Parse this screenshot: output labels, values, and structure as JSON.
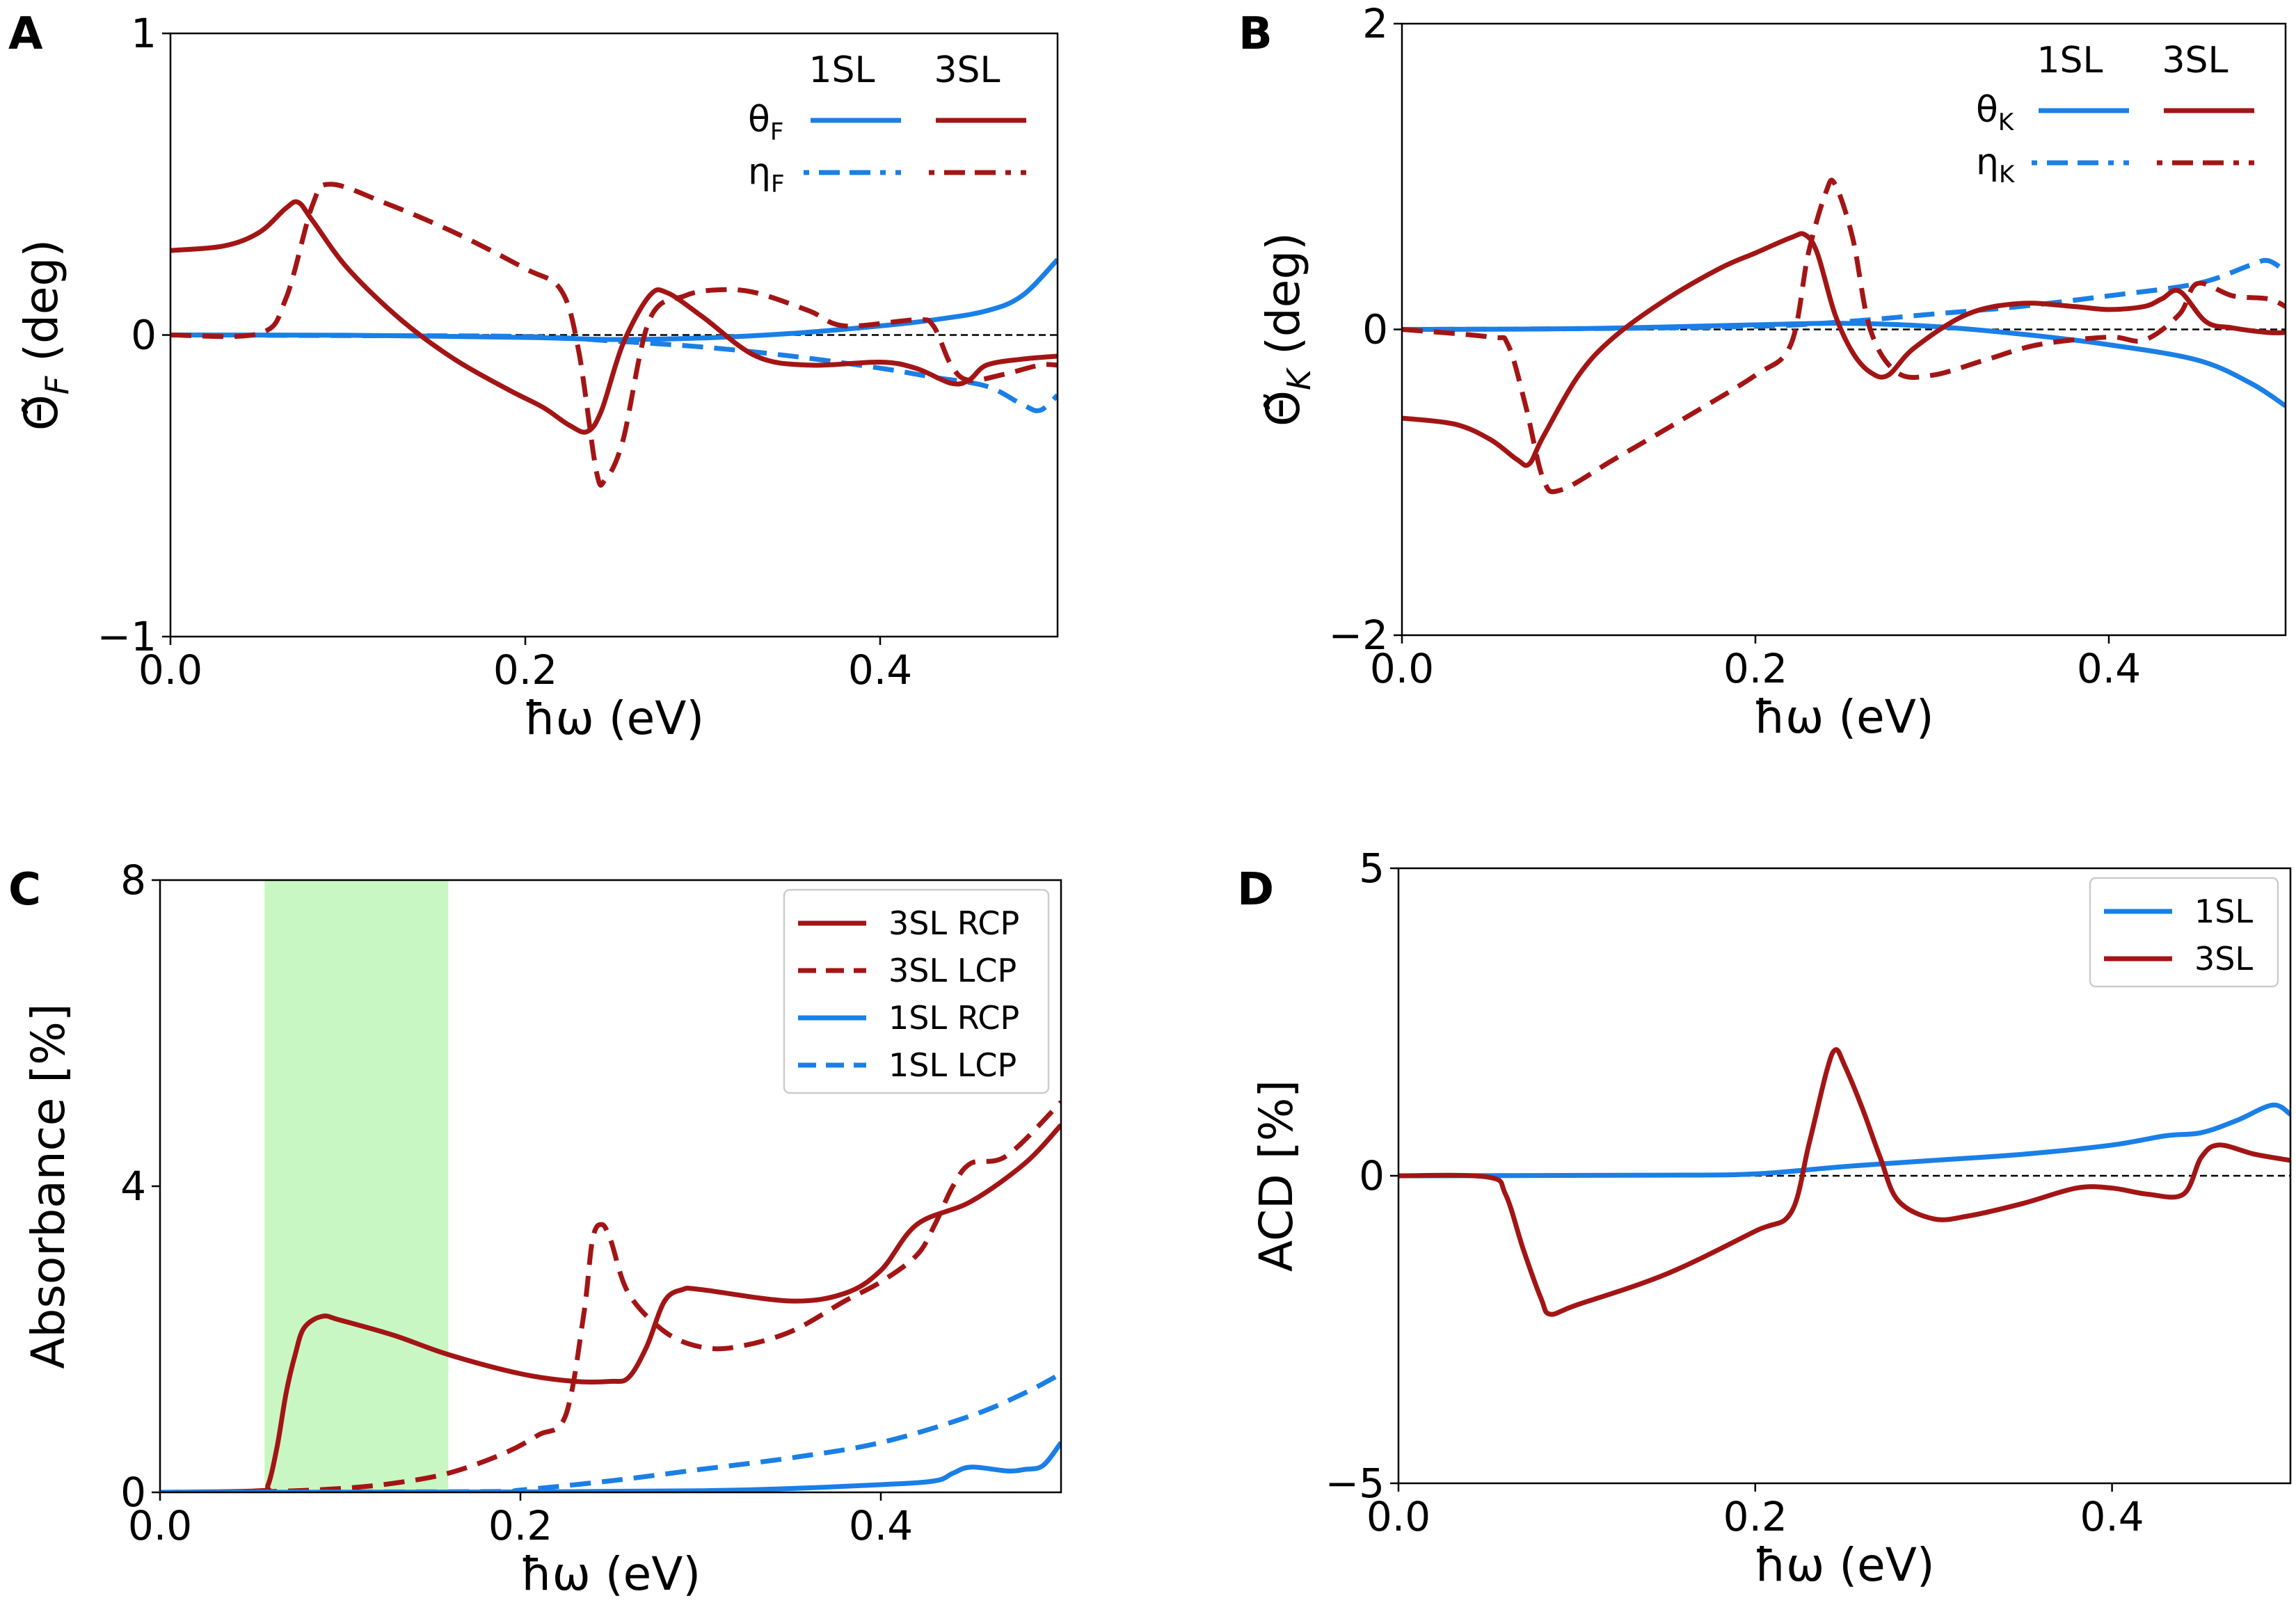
{
  "colors": {
    "blue": "#1a7fe6",
    "red": "#a31515",
    "green": "#c8f7c3",
    "zero": "#000000",
    "legend_frame": "#cccccc"
  },
  "chart_data": [
    {
      "id": "A",
      "type": "line",
      "panel_letter": "A",
      "xlabel": "ħω (eV)",
      "ylabel_main": "Θ̃",
      "ylabel_sub": "F",
      "ylabel_unit": " (deg)",
      "xlim": [
        0,
        0.5
      ],
      "ylim": [
        -1,
        1
      ],
      "xticks": [
        0.0,
        0.2,
        0.4
      ],
      "xtick_labels": [
        "0.0",
        "0.2",
        "0.4"
      ],
      "yticks": [
        -1,
        0,
        1
      ],
      "ytick_labels": [
        "−1",
        "0",
        "1"
      ],
      "zero_line": true,
      "legend": {
        "style": "grid",
        "position": "top-right",
        "col_headers": [
          "1SL",
          "3SL"
        ],
        "rows": [
          {
            "label": "θ",
            "sub": "F",
            "dash": "solid"
          },
          {
            "label": "η",
            "sub": "F",
            "dash": "dashed"
          }
        ]
      },
      "series": [
        {
          "name": "1SL θF",
          "color": "blue",
          "dash": "solid",
          "x": [
            0,
            0.1,
            0.2,
            0.25,
            0.3,
            0.35,
            0.4,
            0.43,
            0.46,
            0.48,
            0.5
          ],
          "y": [
            0,
            -0.001,
            -0.008,
            -0.015,
            -0.01,
            0.005,
            0.03,
            0.05,
            0.08,
            0.13,
            0.25
          ]
        },
        {
          "name": "1SL ηF",
          "color": "blue",
          "dash": "dashed",
          "x": [
            0,
            0.1,
            0.2,
            0.25,
            0.3,
            0.35,
            0.4,
            0.43,
            0.46,
            0.48,
            0.49,
            0.5
          ],
          "y": [
            0,
            -0.002,
            -0.005,
            -0.02,
            -0.04,
            -0.07,
            -0.11,
            -0.14,
            -0.17,
            -0.23,
            -0.25,
            -0.2
          ]
        },
        {
          "name": "3SL θF",
          "color": "red",
          "dash": "solid",
          "x": [
            0,
            0.03,
            0.05,
            0.065,
            0.072,
            0.08,
            0.1,
            0.13,
            0.16,
            0.19,
            0.21,
            0.225,
            0.235,
            0.243,
            0.255,
            0.27,
            0.28,
            0.3,
            0.33,
            0.36,
            0.4,
            0.42,
            0.44,
            0.45,
            0.46,
            0.48,
            0.5
          ],
          "y": [
            0.28,
            0.295,
            0.34,
            0.42,
            0.44,
            0.38,
            0.22,
            0.05,
            -0.08,
            -0.18,
            -0.24,
            -0.3,
            -0.32,
            -0.25,
            -0.03,
            0.13,
            0.14,
            0.06,
            -0.07,
            -0.1,
            -0.09,
            -0.11,
            -0.16,
            -0.15,
            -0.1,
            -0.08,
            -0.07
          ]
        },
        {
          "name": "3SL ηF",
          "color": "red",
          "dash": "dashed",
          "x": [
            0,
            0.05,
            0.065,
            0.08,
            0.09,
            0.12,
            0.16,
            0.2,
            0.22,
            0.23,
            0.24,
            0.245,
            0.255,
            0.27,
            0.29,
            0.31,
            0.33,
            0.36,
            0.38,
            0.42,
            0.43,
            0.44,
            0.45,
            0.47,
            0.49,
            0.5
          ],
          "y": [
            0,
            0.005,
            0.12,
            0.43,
            0.5,
            0.44,
            0.34,
            0.22,
            0.15,
            -0.05,
            -0.45,
            -0.48,
            -0.35,
            0.05,
            0.13,
            0.15,
            0.14,
            0.08,
            0.03,
            0.05,
            0.03,
            -0.1,
            -0.15,
            -0.13,
            -0.1,
            -0.1
          ]
        }
      ]
    },
    {
      "id": "B",
      "type": "line",
      "panel_letter": "B",
      "xlabel": "ħω (eV)",
      "ylabel_main": "Θ̃",
      "ylabel_sub": "K",
      "ylabel_unit": " (deg)",
      "xlim": [
        0,
        0.5
      ],
      "ylim": [
        -2,
        2
      ],
      "xticks": [
        0.0,
        0.2,
        0.4
      ],
      "xtick_labels": [
        "0.0",
        "0.2",
        "0.4"
      ],
      "yticks": [
        -2,
        0,
        2
      ],
      "ytick_labels": [
        "−2",
        "0",
        "2"
      ],
      "zero_line": true,
      "legend": {
        "style": "grid",
        "position": "top-right",
        "col_headers": [
          "1SL",
          "3SL"
        ],
        "rows": [
          {
            "label": "θ",
            "sub": "K",
            "dash": "solid"
          },
          {
            "label": "η",
            "sub": "K",
            "dash": "dashed"
          }
        ]
      },
      "series": [
        {
          "name": "1SL θK",
          "color": "blue",
          "dash": "solid",
          "x": [
            0,
            0.1,
            0.2,
            0.25,
            0.3,
            0.35,
            0.4,
            0.45,
            0.48,
            0.5
          ],
          "y": [
            0,
            0.005,
            0.03,
            0.04,
            0.02,
            -0.03,
            -0.1,
            -0.2,
            -0.35,
            -0.5
          ]
        },
        {
          "name": "1SL ηK",
          "color": "blue",
          "dash": "dashed",
          "x": [
            0,
            0.1,
            0.2,
            0.25,
            0.3,
            0.35,
            0.4,
            0.45,
            0.48,
            0.49,
            0.5
          ],
          "y": [
            0,
            0.005,
            0.02,
            0.05,
            0.1,
            0.15,
            0.22,
            0.3,
            0.42,
            0.45,
            0.38
          ]
        },
        {
          "name": "3SL θK",
          "color": "red",
          "dash": "solid",
          "x": [
            0,
            0.03,
            0.05,
            0.065,
            0.072,
            0.08,
            0.1,
            0.12,
            0.15,
            0.18,
            0.2,
            0.22,
            0.228,
            0.235,
            0.245,
            0.255,
            0.265,
            0.275,
            0.29,
            0.32,
            0.35,
            0.38,
            0.4,
            0.42,
            0.43,
            0.44,
            0.455,
            0.47,
            0.49,
            0.5
          ],
          "y": [
            -0.58,
            -0.62,
            -0.72,
            -0.85,
            -0.88,
            -0.7,
            -0.3,
            -0.05,
            0.2,
            0.4,
            0.5,
            0.6,
            0.62,
            0.5,
            0.1,
            -0.15,
            -0.28,
            -0.3,
            -0.12,
            0.1,
            0.17,
            0.15,
            0.13,
            0.15,
            0.2,
            0.25,
            0.05,
            0.01,
            -0.02,
            -0.02
          ]
        },
        {
          "name": "3SL ηK",
          "color": "red",
          "dash": "dashed",
          "x": [
            0,
            0.05,
            0.06,
            0.07,
            0.08,
            0.09,
            0.12,
            0.16,
            0.2,
            0.22,
            0.23,
            0.24,
            0.245,
            0.255,
            0.265,
            0.28,
            0.3,
            0.33,
            0.36,
            0.4,
            0.42,
            0.44,
            0.45,
            0.47,
            0.49,
            0.5
          ],
          "y": [
            0,
            -0.05,
            -0.1,
            -0.5,
            -0.98,
            -1.05,
            -0.85,
            -0.58,
            -0.3,
            -0.1,
            0.5,
            0.9,
            0.95,
            0.6,
            0.0,
            -0.28,
            -0.3,
            -0.2,
            -0.1,
            -0.05,
            -0.07,
            0.1,
            0.3,
            0.22,
            0.2,
            0.15
          ]
        }
      ]
    },
    {
      "id": "C",
      "type": "line",
      "panel_letter": "C",
      "xlabel": "ħω (eV)",
      "ylabel": "Absorbance [%]",
      "xlim": [
        0,
        0.5
      ],
      "ylim": [
        0,
        8
      ],
      "xticks": [
        0.0,
        0.2,
        0.4
      ],
      "xtick_labels": [
        "0.0",
        "0.2",
        "0.4"
      ],
      "yticks": [
        0,
        4,
        8
      ],
      "ytick_labels": [
        "0",
        "4",
        "8"
      ],
      "zero_line": false,
      "shaded_band": {
        "x_from": 0.058,
        "x_to": 0.16
      },
      "legend": {
        "style": "box",
        "position": "top-right",
        "entries": [
          {
            "label": "3SL RCP",
            "color": "red",
            "dash": "solid"
          },
          {
            "label": "3SL LCP",
            "color": "red",
            "dash": "dashed"
          },
          {
            "label": "1SL RCP",
            "color": "blue",
            "dash": "solid"
          },
          {
            "label": "1SL LCP",
            "color": "blue",
            "dash": "dashed"
          }
        ]
      },
      "series": [
        {
          "name": "3SL RCP",
          "color": "red",
          "dash": "solid",
          "x": [
            0,
            0.055,
            0.06,
            0.065,
            0.07,
            0.075,
            0.08,
            0.09,
            0.1,
            0.13,
            0.16,
            0.2,
            0.23,
            0.25,
            0.26,
            0.27,
            0.28,
            0.29,
            0.3,
            0.35,
            0.38,
            0.4,
            0.42,
            0.45,
            0.48,
            0.5
          ],
          "y": [
            0,
            0.02,
            0.1,
            0.6,
            1.3,
            1.8,
            2.15,
            2.3,
            2.25,
            2.05,
            1.8,
            1.55,
            1.45,
            1.45,
            1.5,
            1.9,
            2.5,
            2.65,
            2.65,
            2.5,
            2.6,
            2.9,
            3.5,
            3.8,
            4.3,
            4.8
          ]
        },
        {
          "name": "3SL LCP",
          "color": "red",
          "dash": "dashed",
          "x": [
            0,
            0.06,
            0.1,
            0.13,
            0.16,
            0.19,
            0.21,
            0.225,
            0.235,
            0.24,
            0.245,
            0.25,
            0.26,
            0.28,
            0.3,
            0.32,
            0.35,
            0.38,
            0.4,
            0.42,
            0.43,
            0.44,
            0.45,
            0.47,
            0.5
          ],
          "y": [
            0,
            0.01,
            0.05,
            0.12,
            0.25,
            0.5,
            0.75,
            1.0,
            2.3,
            3.3,
            3.5,
            3.3,
            2.6,
            2.1,
            1.9,
            1.9,
            2.1,
            2.5,
            2.75,
            3.1,
            3.5,
            4.0,
            4.3,
            4.4,
            5.1
          ]
        },
        {
          "name": "1SL RCP",
          "color": "blue",
          "dash": "solid",
          "x": [
            0,
            0.2,
            0.3,
            0.35,
            0.4,
            0.43,
            0.44,
            0.45,
            0.47,
            0.48,
            0.49,
            0.5
          ],
          "y": [
            0,
            0.005,
            0.02,
            0.05,
            0.1,
            0.15,
            0.25,
            0.33,
            0.28,
            0.3,
            0.35,
            0.65
          ]
        },
        {
          "name": "1SL LCP",
          "color": "blue",
          "dash": "dashed",
          "x": [
            0,
            0.18,
            0.2,
            0.25,
            0.3,
            0.35,
            0.4,
            0.45,
            0.48,
            0.5
          ],
          "y": [
            0,
            0.01,
            0.03,
            0.15,
            0.3,
            0.45,
            0.65,
            1.0,
            1.3,
            1.55
          ]
        }
      ]
    },
    {
      "id": "D",
      "type": "line",
      "panel_letter": "D",
      "xlabel": "ħω (eV)",
      "ylabel": "ACD [%]",
      "xlim": [
        0,
        0.5
      ],
      "ylim": [
        -5,
        5
      ],
      "xticks": [
        0.0,
        0.2,
        0.4
      ],
      "xtick_labels": [
        "0.0",
        "0.2",
        "0.4"
      ],
      "yticks": [
        -5,
        0,
        5
      ],
      "ytick_labels": [
        "−5",
        "0",
        "5"
      ],
      "zero_line": true,
      "legend": {
        "style": "box",
        "position": "top-right",
        "entries": [
          {
            "label": "1SL",
            "color": "blue",
            "dash": "solid"
          },
          {
            "label": "3SL",
            "color": "red",
            "dash": "solid"
          }
        ]
      },
      "series": [
        {
          "name": "1SL",
          "color": "blue",
          "dash": "solid",
          "x": [
            0,
            0.15,
            0.2,
            0.25,
            0.3,
            0.35,
            0.4,
            0.43,
            0.45,
            0.47,
            0.49,
            0.5
          ],
          "y": [
            0,
            0.01,
            0.03,
            0.15,
            0.25,
            0.35,
            0.5,
            0.65,
            0.7,
            0.9,
            1.15,
            1.0
          ]
        },
        {
          "name": "3SL",
          "color": "red",
          "dash": "solid",
          "x": [
            0,
            0.05,
            0.06,
            0.07,
            0.08,
            0.085,
            0.1,
            0.15,
            0.2,
            0.22,
            0.23,
            0.24,
            0.245,
            0.25,
            0.26,
            0.27,
            0.28,
            0.3,
            0.32,
            0.35,
            0.38,
            0.4,
            0.42,
            0.44,
            0.45,
            0.46,
            0.48,
            0.5
          ],
          "y": [
            0,
            -0.02,
            -0.3,
            -1.2,
            -2.0,
            -2.25,
            -2.1,
            -1.6,
            -0.9,
            -0.6,
            0.5,
            1.7,
            2.05,
            1.8,
            1.1,
            0.3,
            -0.4,
            -0.7,
            -0.65,
            -0.45,
            -0.2,
            -0.2,
            -0.3,
            -0.3,
            0.3,
            0.5,
            0.35,
            0.25
          ]
        }
      ]
    }
  ]
}
